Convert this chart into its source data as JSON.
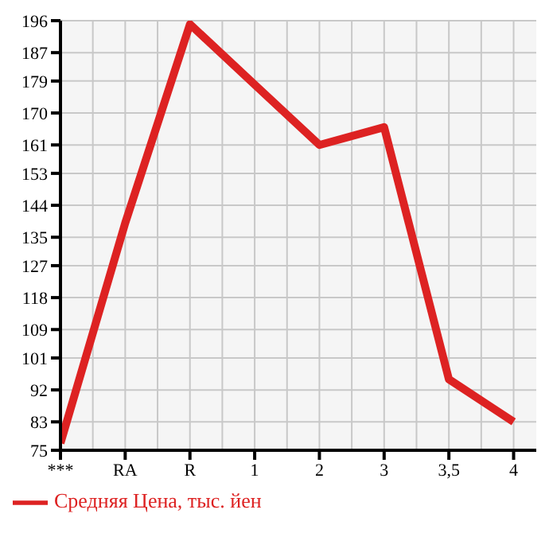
{
  "chart_data": {
    "type": "line",
    "categories": [
      "***",
      "RA",
      "R",
      "1",
      "2",
      "3",
      "3,5",
      "4"
    ],
    "series": [
      {
        "name": "Средняя Цена, тыс. йен",
        "color": "#dd2222",
        "values": [
          77,
          139,
          195,
          178,
          161,
          166,
          95,
          83
        ]
      }
    ],
    "ylim": [
      75,
      196
    ],
    "yticks": [
      75,
      83,
      92,
      101,
      109,
      118,
      127,
      135,
      144,
      153,
      161,
      170,
      179,
      187,
      196
    ],
    "grid": true,
    "legend": "bottom left",
    "marker": "none",
    "line_style": "solid"
  }
}
